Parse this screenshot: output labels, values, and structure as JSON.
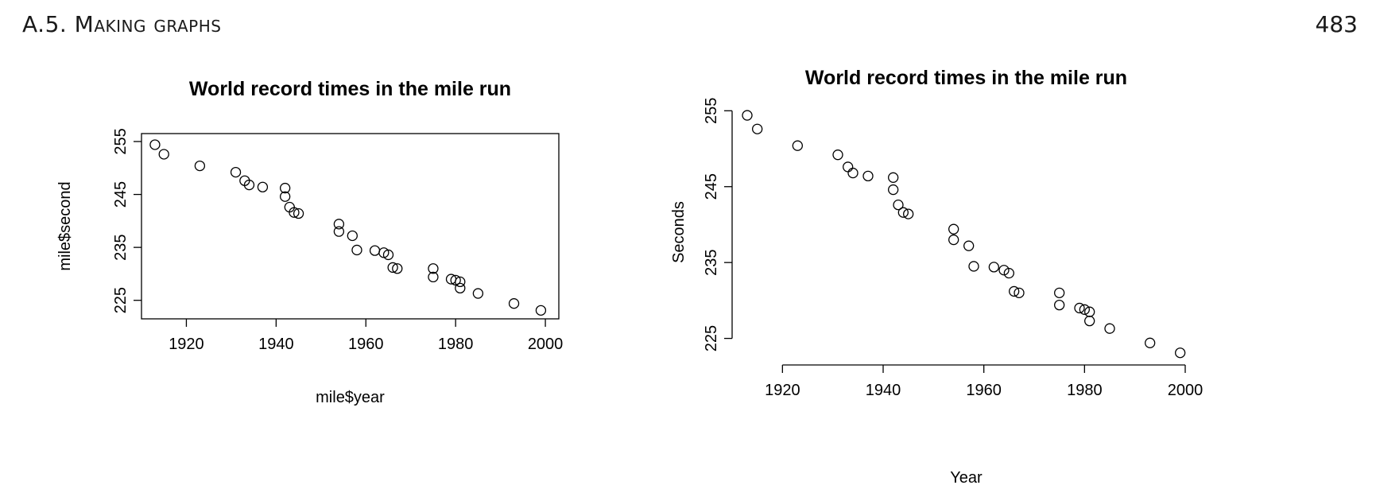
{
  "header": {
    "section_title": "A.5.  Making graphs",
    "page_number": "483"
  },
  "chart_data": [
    {
      "type": "scatter",
      "title": "World record times in the mile run",
      "xlabel": "mile$year",
      "ylabel": "mile$second",
      "xlim": [
        1910,
        2003
      ],
      "ylim": [
        221.5,
        256.5
      ],
      "xticks": [
        1920,
        1940,
        1960,
        1980,
        2000
      ],
      "yticks": [
        225,
        235,
        245,
        255
      ],
      "box": true,
      "x": [
        1913,
        1915,
        1923,
        1931,
        1933,
        1934,
        1937,
        1942,
        1942,
        1943,
        1944,
        1945,
        1954,
        1954,
        1957,
        1958,
        1962,
        1964,
        1965,
        1966,
        1967,
        1975,
        1975,
        1979,
        1980,
        1981,
        1981,
        1985,
        1993,
        1999
      ],
      "y": [
        254.4,
        252.6,
        250.4,
        249.2,
        247.6,
        246.8,
        246.4,
        246.2,
        244.6,
        242.6,
        241.6,
        241.4,
        239.4,
        238.0,
        237.2,
        234.5,
        234.4,
        234.0,
        233.6,
        231.2,
        231.0,
        231.0,
        229.4,
        229.0,
        228.8,
        228.5,
        227.3,
        226.3,
        224.4,
        223.1
      ]
    },
    {
      "type": "scatter",
      "title": "World record times in the mile run",
      "xlabel": "Year",
      "ylabel": "Seconds",
      "xlim": [
        1910,
        2003
      ],
      "ylim": [
        221.5,
        256.5
      ],
      "xticks": [
        1920,
        1940,
        1960,
        1980,
        2000
      ],
      "yticks": [
        225,
        235,
        245,
        255
      ],
      "box": false,
      "x": [
        1913,
        1915,
        1923,
        1931,
        1933,
        1934,
        1937,
        1942,
        1942,
        1943,
        1944,
        1945,
        1954,
        1954,
        1957,
        1958,
        1962,
        1964,
        1965,
        1966,
        1967,
        1975,
        1975,
        1979,
        1980,
        1981,
        1981,
        1985,
        1993,
        1999
      ],
      "y": [
        254.4,
        252.6,
        250.4,
        249.2,
        247.6,
        246.8,
        246.4,
        246.2,
        244.6,
        242.6,
        241.6,
        241.4,
        239.4,
        238.0,
        237.2,
        234.5,
        234.4,
        234.0,
        233.6,
        231.2,
        231.0,
        231.0,
        229.4,
        229.0,
        228.8,
        228.5,
        227.3,
        226.3,
        224.4,
        223.1
      ]
    }
  ]
}
